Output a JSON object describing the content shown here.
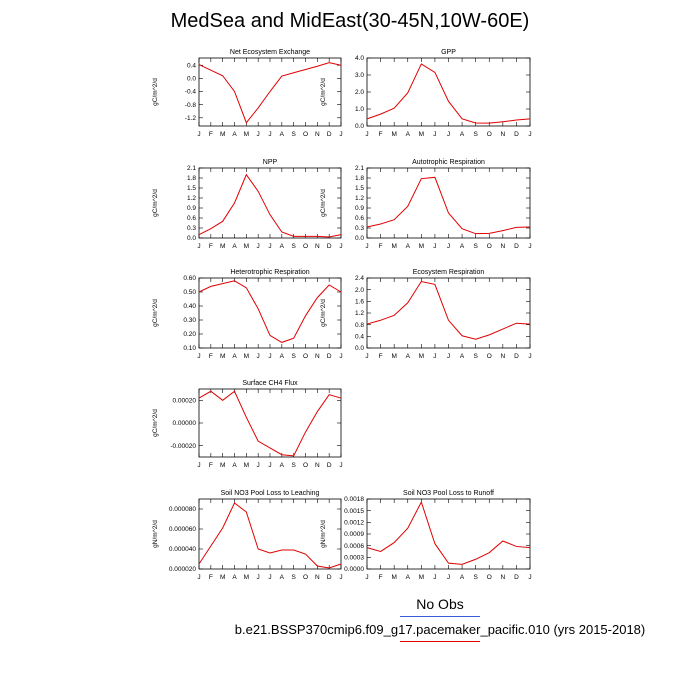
{
  "page_title": "MedSea and MidEast(30-45N,10W-60E)",
  "legend": {
    "obs_label": "No Obs",
    "obs_color": "#3b5bd6",
    "case_label": "b.e21.BSSP370cmip6.f09_g17.pacemaker_pacific.010 (yrs 2015-2018)",
    "case_color": "#e00000"
  },
  "chart_data": [
    {
      "type": "line",
      "title": "Net Ecosystem Exchange",
      "ylabel": "gC/m^2/d",
      "x": [
        "J",
        "F",
        "M",
        "A",
        "M",
        "J",
        "J",
        "A",
        "S",
        "O",
        "N",
        "D",
        "J"
      ],
      "ylim": [
        -1.45,
        0.62
      ],
      "yticks": [
        "0.4",
        "0.0",
        "-0.4",
        "-0.8",
        "-1.2"
      ],
      "ytick_values": [
        0.4,
        0.0,
        -0.4,
        -0.8,
        -1.2
      ],
      "series": [
        {
          "color": "#e00000",
          "values": [
            0.42,
            0.25,
            0.08,
            -0.4,
            -1.35,
            -0.9,
            -0.4,
            0.07,
            0.17,
            0.27,
            0.37,
            0.48,
            0.4
          ]
        }
      ]
    },
    {
      "type": "line",
      "title": "GPP",
      "ylabel": "gC/m^2/d",
      "x": [
        "J",
        "F",
        "M",
        "A",
        "M",
        "J",
        "J",
        "A",
        "S",
        "O",
        "N",
        "D",
        "J"
      ],
      "ylim": [
        0.0,
        4.0
      ],
      "yticks": [
        "4.0",
        "3.0",
        "2.0",
        "1.0",
        "0.0"
      ],
      "ytick_values": [
        4.0,
        3.0,
        2.0,
        1.0,
        0.0
      ],
      "series": [
        {
          "color": "#e00000",
          "values": [
            0.42,
            0.7,
            1.05,
            1.95,
            3.65,
            3.15,
            1.45,
            0.42,
            0.18,
            0.17,
            0.25,
            0.35,
            0.42
          ]
        }
      ]
    },
    {
      "type": "line",
      "title": "NPP",
      "ylabel": "gC/m^2/d",
      "x": [
        "J",
        "F",
        "M",
        "A",
        "M",
        "J",
        "J",
        "A",
        "S",
        "O",
        "N",
        "D",
        "J"
      ],
      "ylim": [
        0.0,
        2.1
      ],
      "yticks": [
        "2.1",
        "1.8",
        "1.5",
        "1.2",
        "0.9",
        "0.6",
        "0.3",
        "0.0"
      ],
      "ytick_values": [
        2.1,
        1.8,
        1.5,
        1.2,
        0.9,
        0.6,
        0.3,
        0.0
      ],
      "series": [
        {
          "color": "#e00000",
          "values": [
            0.1,
            0.28,
            0.5,
            1.05,
            1.9,
            1.4,
            0.7,
            0.18,
            0.05,
            0.05,
            0.05,
            0.03,
            0.1
          ]
        }
      ]
    },
    {
      "type": "line",
      "title": "Autotrophic Respiration",
      "ylabel": "gC/m^2/d",
      "x": [
        "J",
        "F",
        "M",
        "A",
        "M",
        "J",
        "J",
        "A",
        "S",
        "O",
        "N",
        "D",
        "J"
      ],
      "ylim": [
        0.0,
        2.1
      ],
      "yticks": [
        "2.1",
        "1.8",
        "1.5",
        "1.2",
        "0.9",
        "0.6",
        "0.3",
        "0.0"
      ],
      "ytick_values": [
        2.1,
        1.8,
        1.5,
        1.2,
        0.9,
        0.6,
        0.3,
        0.0
      ],
      "series": [
        {
          "color": "#e00000",
          "values": [
            0.33,
            0.42,
            0.55,
            0.95,
            1.78,
            1.82,
            0.75,
            0.28,
            0.13,
            0.14,
            0.22,
            0.32,
            0.33
          ]
        }
      ]
    },
    {
      "type": "line",
      "title": "Heterotrophic Respiration",
      "ylabel": "gC/m^2/d",
      "x": [
        "J",
        "F",
        "M",
        "A",
        "M",
        "J",
        "J",
        "A",
        "S",
        "O",
        "N",
        "D",
        "J"
      ],
      "ylim": [
        0.1,
        0.6
      ],
      "yticks": [
        "0.60",
        "0.50",
        "0.40",
        "0.30",
        "0.20",
        "0.10"
      ],
      "ytick_values": [
        0.6,
        0.5,
        0.4,
        0.3,
        0.2,
        0.1
      ],
      "series": [
        {
          "color": "#e00000",
          "values": [
            0.5,
            0.54,
            0.56,
            0.58,
            0.53,
            0.38,
            0.19,
            0.14,
            0.17,
            0.33,
            0.46,
            0.55,
            0.5
          ]
        }
      ]
    },
    {
      "type": "line",
      "title": "Ecosystem Respiration",
      "ylabel": "gC/m^2/d",
      "x": [
        "J",
        "F",
        "M",
        "A",
        "M",
        "J",
        "J",
        "A",
        "S",
        "O",
        "N",
        "D",
        "J"
      ],
      "ylim": [
        0.0,
        2.4
      ],
      "yticks": [
        "2.4",
        "2.0",
        "1.6",
        "1.2",
        "0.8",
        "0.4",
        "0.0"
      ],
      "ytick_values": [
        2.4,
        2.0,
        1.6,
        1.2,
        0.8,
        0.4,
        0.0
      ],
      "series": [
        {
          "color": "#e00000",
          "values": [
            0.82,
            0.95,
            1.12,
            1.55,
            2.28,
            2.18,
            0.95,
            0.42,
            0.3,
            0.45,
            0.65,
            0.85,
            0.82
          ]
        }
      ]
    },
    {
      "type": "line",
      "title": "Surface CH4 Flux",
      "ylabel": "gC/m^2/d",
      "x": [
        "J",
        "F",
        "M",
        "A",
        "M",
        "J",
        "J",
        "A",
        "S",
        "O",
        "N",
        "D",
        "J"
      ],
      "ylim": [
        -0.0003,
        0.0003
      ],
      "yticks": [
        "0.00020",
        "0.00000",
        "-0.00020"
      ],
      "ytick_values": [
        0.0002,
        0.0,
        -0.0002
      ],
      "series": [
        {
          "color": "#e00000",
          "values": [
            0.00022,
            0.00028,
            0.0002,
            0.00028,
            5e-05,
            -0.00016,
            -0.00022,
            -0.00028,
            -0.00029,
            -8e-05,
            0.0001,
            0.00025,
            0.00022
          ]
        }
      ]
    },
    {
      "type": "line",
      "title": "Soil NO3 Pool Loss to Leaching",
      "ylabel": "gN/m^2/d",
      "x": [
        "J",
        "F",
        "M",
        "A",
        "M",
        "J",
        "J",
        "A",
        "S",
        "O",
        "N",
        "D",
        "J"
      ],
      "ylim": [
        2e-05,
        9e-05
      ],
      "yticks": [
        "0.000080",
        "0.000060",
        "0.000040",
        "0.000020"
      ],
      "ytick_values": [
        8e-05,
        6e-05,
        4e-05,
        2e-05
      ],
      "series": [
        {
          "color": "#e00000",
          "values": [
            2.5e-05,
            4.3e-05,
            6.1e-05,
            8.6e-05,
            7.7e-05,
            4e-05,
            3.6e-05,
            3.9e-05,
            3.9e-05,
            3.5e-05,
            2.3e-05,
            2.1e-05,
            2.5e-05
          ]
        }
      ]
    },
    {
      "type": "line",
      "title": "Soil NO3 Pool Loss to Runoff",
      "ylabel": "gN/m^2/d",
      "x": [
        "J",
        "F",
        "M",
        "A",
        "M",
        "J",
        "J",
        "A",
        "S",
        "O",
        "N",
        "D",
        "J"
      ],
      "ylim": [
        0.0,
        0.0018
      ],
      "yticks": [
        "0.0018",
        "0.0015",
        "0.0012",
        "0.0009",
        "0.0006",
        "0.0003",
        "0.0000"
      ],
      "ytick_values": [
        0.0018,
        0.0015,
        0.0012,
        0.0009,
        0.0006,
        0.0003,
        0.0
      ],
      "series": [
        {
          "color": "#e00000",
          "values": [
            0.00055,
            0.00045,
            0.00068,
            0.00105,
            0.00172,
            0.00065,
            0.00015,
            0.00012,
            0.00025,
            0.00042,
            0.00072,
            0.00058,
            0.00055
          ]
        }
      ]
    }
  ]
}
